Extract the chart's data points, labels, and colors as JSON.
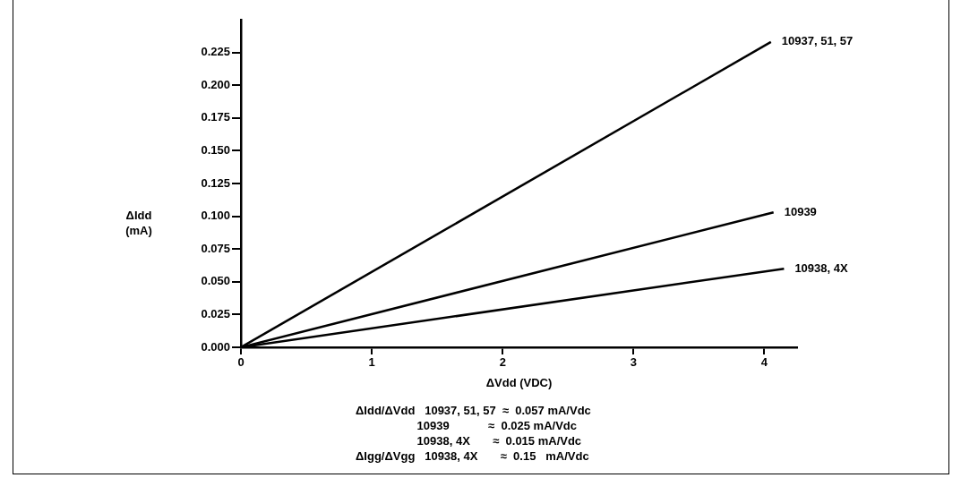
{
  "chart_data": {
    "type": "line",
    "xlabel": "ΔVdd (VDC)",
    "ylabel": "ΔIdd (mA)",
    "xlim": [
      0,
      4.25
    ],
    "xticks": [
      0,
      1,
      2,
      3,
      4
    ],
    "ylim": [
      0,
      0.25
    ],
    "yticks": [
      {
        "value": 0,
        "label": "0.000"
      },
      0.025,
      {
        "value": 0.05,
        "label": "0.050"
      },
      0.075,
      {
        "value": 0.1,
        "label": "0.100"
      },
      0.125,
      {
        "value": 0.15,
        "label": "0.150"
      },
      0.175,
      {
        "value": 0.2,
        "label": "0.200"
      },
      0.225
    ],
    "series": [
      {
        "name": "10937, 51, 57",
        "color": "#000000",
        "x": [
          0,
          4.05
        ],
        "values": [
          0,
          0.233
        ]
      },
      {
        "name": "10939",
        "color": "#000000",
        "x": [
          0,
          4.07
        ],
        "values": [
          0,
          0.103
        ]
      },
      {
        "name": "10938, 4X",
        "color": "#000000",
        "x": [
          0,
          4.15
        ],
        "values": [
          0,
          0.06
        ]
      }
    ],
    "annotations": [
      "ΔIdd/ΔVdd   10937, 51, 57  ≈  0.057 mA/Vdc",
      "                   10939            ≈  0.025 mA/Vdc",
      "                   10938, 4X       ≈  0.015 mA/Vdc",
      "ΔIgg/ΔVgg   10938, 4X       ≈  0.15   mA/Vdc"
    ],
    "grid": false,
    "legend": false,
    "marker": "none",
    "line_style": "solid"
  }
}
